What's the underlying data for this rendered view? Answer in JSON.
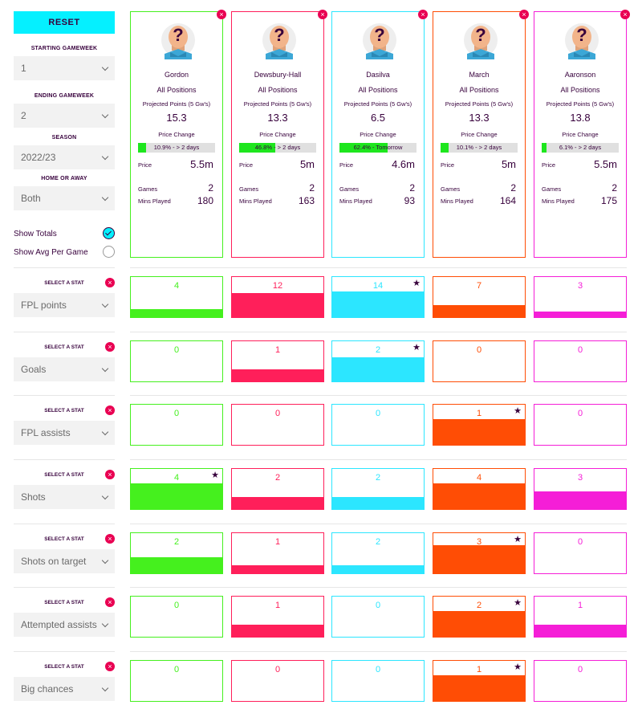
{
  "controls": {
    "reset_label": "RESET",
    "starting_label": "STARTING GAMEWEEK",
    "starting_value": "1",
    "ending_label": "ENDING GAMEWEEK",
    "ending_value": "2",
    "season_label": "SEASON",
    "season_value": "2022/23",
    "home_away_label": "HOME OR AWAY",
    "home_away_value": "Both",
    "show_totals_label": "Show Totals",
    "show_totals_checked": true,
    "show_avg_label": "Show Avg Per Game",
    "show_avg_checked": false
  },
  "labels": {
    "projected_points": "Projected Points (5 Gw's)",
    "price_change": "Price Change",
    "price": "Price",
    "games": "Games",
    "mins_played": "Mins Played",
    "select_stat": "SELECT A STAT",
    "close": "×",
    "unknown_player": "?"
  },
  "players": [
    {
      "name": "Gordon",
      "position": "All Positions",
      "projected": "15.3",
      "price_change_text": "10.9% - > 2 days",
      "price_change_pct": 10.9,
      "price": "5.5m",
      "games": "2",
      "mins": "180",
      "color": "#45f01e"
    },
    {
      "name": "Dewsbury-Hall",
      "position": "All Positions",
      "projected": "13.3",
      "price_change_text": "46.8% - > 2 days",
      "price_change_pct": 46.8,
      "price": "5m",
      "games": "2",
      "mins": "163",
      "color": "#ff1f5a"
    },
    {
      "name": "Dasilva",
      "position": "All Positions",
      "projected": "6.5",
      "price_change_text": "62.4% - Tomorrow",
      "price_change_pct": 62.4,
      "price": "4.6m",
      "games": "2",
      "mins": "93",
      "color": "#2ce6ff"
    },
    {
      "name": "March",
      "position": "All Positions",
      "projected": "13.3",
      "price_change_text": "10.1% - > 2 days",
      "price_change_pct": 10.1,
      "price": "5m",
      "games": "2",
      "mins": "164",
      "color": "#ff4d05"
    },
    {
      "name": "Aaronson",
      "position": "All Positions",
      "projected": "13.8",
      "price_change_text": "6.1% - > 2 days",
      "price_change_pct": 6.1,
      "price": "5.5m",
      "games": "2",
      "mins": "175",
      "color": "#f51ed7"
    }
  ],
  "stats": [
    {
      "name": "FPL points",
      "values": [
        "4",
        "12",
        "14",
        "7",
        "3"
      ],
      "fill": [
        0.2,
        0.6,
        0.65,
        0.3,
        0.14
      ],
      "star": 2
    },
    {
      "name": "Goals",
      "values": [
        "0",
        "1",
        "2",
        "0",
        "0"
      ],
      "fill": [
        0,
        0.3,
        0.6,
        0,
        0
      ],
      "star": 2
    },
    {
      "name": "FPL assists",
      "values": [
        "0",
        "0",
        "0",
        "1",
        "0"
      ],
      "fill": [
        0,
        0,
        0,
        0.65,
        0
      ],
      "star": 3
    },
    {
      "name": "Shots",
      "values": [
        "4",
        "2",
        "2",
        "4",
        "3"
      ],
      "fill": [
        0.65,
        0.3,
        0.3,
        0.65,
        0.45
      ],
      "star": 0
    },
    {
      "name": "Shots on target",
      "values": [
        "2",
        "1",
        "2",
        "3",
        "0"
      ],
      "fill": [
        0.4,
        0.2,
        0.2,
        0.7,
        0
      ],
      "star": 3
    },
    {
      "name": "Attempted assists",
      "values": [
        "0",
        "1",
        "0",
        "2",
        "1"
      ],
      "fill": [
        0,
        0.3,
        0,
        0.65,
        0.3
      ],
      "star": 3
    },
    {
      "name": "Big chances",
      "values": [
        "0",
        "0",
        "0",
        "1",
        "0"
      ],
      "fill": [
        0,
        0,
        0,
        0.65,
        0
      ],
      "star": 3
    }
  ],
  "star_symbol": "★"
}
